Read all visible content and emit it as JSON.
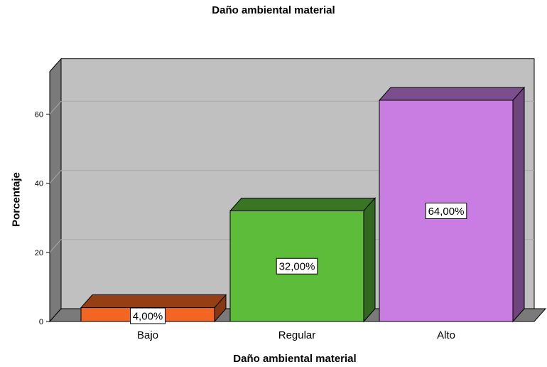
{
  "chart_data": {
    "type": "bar",
    "title": "Daño ambiental material",
    "xlabel": "Daño ambiental material",
    "ylabel": "Porcentaje",
    "categories": [
      "Bajo",
      "Regular",
      "Alto"
    ],
    "values": [
      4,
      32,
      64
    ],
    "data_labels": [
      "4,00%",
      "32,00%",
      "64,00%"
    ],
    "yticks": [
      "0",
      "20",
      "40",
      "60"
    ],
    "ylim": [
      0,
      76
    ],
    "grid": true,
    "style": "3d",
    "colors": {
      "Bajo": "#f26522",
      "Regular": "#5dbd3a",
      "Alto": "#c97de3",
      "plot_background": "#c0c0c0"
    }
  }
}
